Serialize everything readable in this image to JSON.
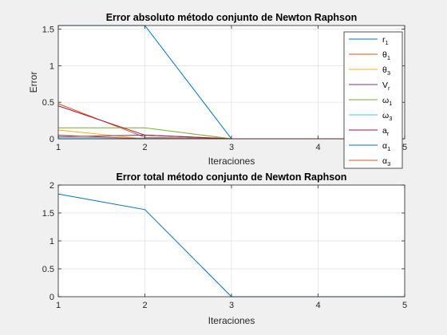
{
  "chart_data": [
    {
      "type": "line",
      "title": "Error absoluto método conjunto de Newton Raphson",
      "xlabel": "Iteraciones",
      "ylabel": "Error",
      "xlim": [
        1,
        5
      ],
      "ylim": [
        0,
        1.55
      ],
      "xticks": [
        "1",
        "2",
        "3",
        "4",
        "5"
      ],
      "yticks": [
        0,
        0.5,
        1,
        1.5
      ],
      "ytick_labels": [
        "0",
        "0.5",
        "1",
        "1.5"
      ],
      "grid": true,
      "legend_position": "top-right",
      "x": [
        1,
        2,
        3,
        4,
        5
      ],
      "series": [
        {
          "name": "r",
          "sub": "1",
          "color": "#0072bd",
          "values": [
            0.0,
            0.0,
            0.0,
            0.0,
            0.0
          ]
        },
        {
          "name": "θ",
          "sub": "1",
          "color": "#d95319",
          "values": [
            0.48,
            0.02,
            0.0,
            0.0,
            0.0
          ]
        },
        {
          "name": "θ",
          "sub": "3",
          "color": "#edb120",
          "values": [
            0.12,
            0.0,
            0.0,
            0.0,
            0.0
          ]
        },
        {
          "name": "V",
          "sub": "r",
          "color": "#7e2f8e",
          "values": [
            0.03,
            0.05,
            0.0,
            0.0,
            0.0
          ]
        },
        {
          "name": "ω",
          "sub": "1",
          "color": "#77ac30",
          "values": [
            0.15,
            0.15,
            0.0,
            0.0,
            0.0
          ]
        },
        {
          "name": "ω",
          "sub": "3",
          "color": "#4dbeee",
          "values": [
            0.02,
            0.01,
            0.0,
            0.0,
            0.0
          ]
        },
        {
          "name": "a",
          "sub": "r",
          "color": "#a2142f",
          "values": [
            0.45,
            0.05,
            0.0,
            0.0,
            0.0
          ]
        },
        {
          "name": "α",
          "sub": "1",
          "color": "#0072bd",
          "values": [
            1.55,
            1.55,
            0.0,
            0.0,
            0.0
          ]
        },
        {
          "name": "α",
          "sub": "3",
          "color": "#d95319",
          "values": [
            0.05,
            0.0,
            0.0,
            0.0,
            0.0
          ]
        }
      ]
    },
    {
      "type": "line",
      "title": "Error total método conjunto de Newton Raphson",
      "xlabel": "Iteraciones",
      "ylabel": "",
      "xlim": [
        1,
        5
      ],
      "ylim": [
        0,
        2
      ],
      "xticks": [
        "1",
        "2",
        "3",
        "4",
        "5"
      ],
      "yticks": [
        0,
        0.5,
        1,
        1.5,
        2
      ],
      "ytick_labels": [
        "0",
        "0.5",
        "1",
        "1.5",
        "2"
      ],
      "grid": true,
      "x": [
        1,
        2,
        3,
        4,
        5
      ],
      "series": [
        {
          "color": "#0072bd",
          "values": [
            1.84,
            1.56,
            0.0,
            0.0,
            0.0
          ]
        }
      ]
    }
  ]
}
